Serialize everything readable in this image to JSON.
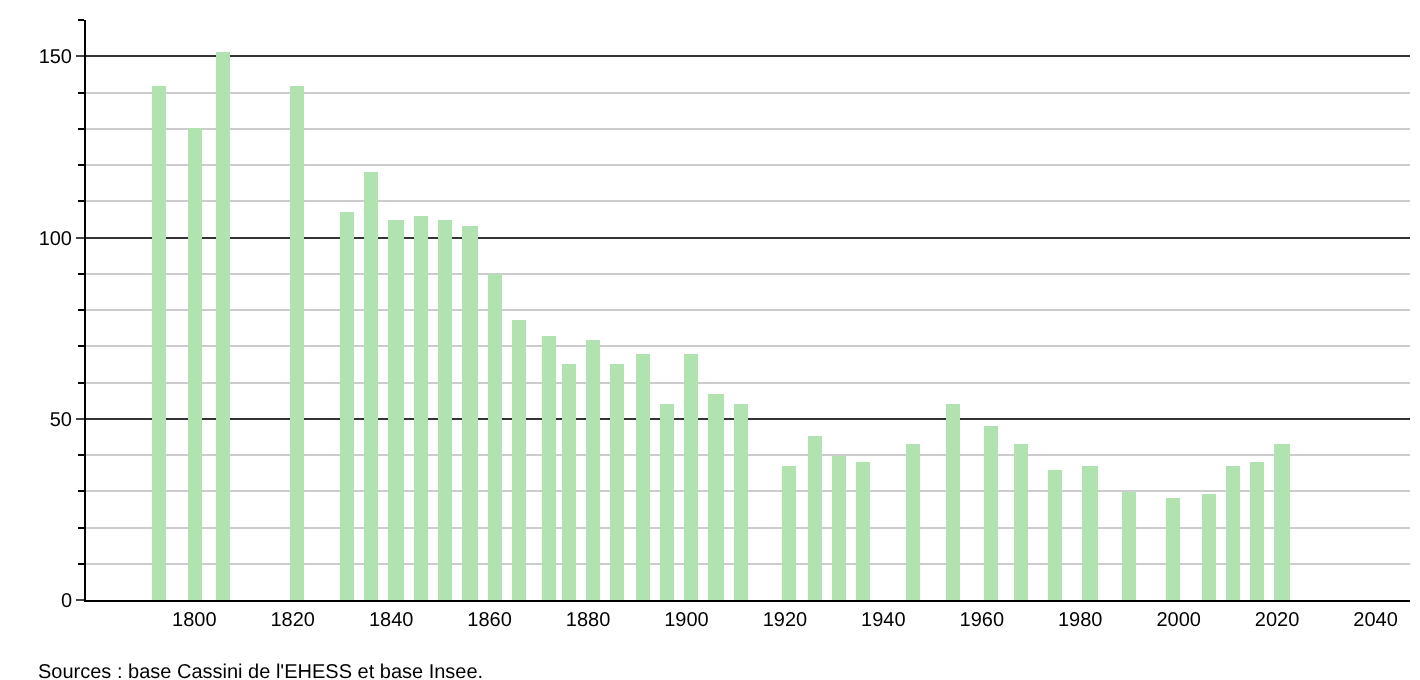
{
  "chart_data": {
    "type": "bar",
    "x": [
      1793,
      1800,
      1806,
      1821,
      1831,
      1836,
      1841,
      1846,
      1851,
      1856,
      1861,
      1866,
      1872,
      1876,
      1881,
      1886,
      1891,
      1896,
      1901,
      1906,
      1911,
      1921,
      1926,
      1931,
      1936,
      1946,
      1954,
      1962,
      1968,
      1975,
      1982,
      1990,
      1999,
      2006,
      2011,
      2016,
      2021
    ],
    "values": [
      142,
      130,
      151,
      142,
      107,
      118,
      105,
      106,
      105,
      103,
      90,
      77,
      73,
      65,
      72,
      65,
      68,
      54,
      68,
      57,
      54,
      37,
      45,
      40,
      38,
      43,
      54,
      48,
      43,
      36,
      37,
      30,
      28,
      29,
      37,
      38,
      43
    ],
    "color": "#b0e3b0",
    "xlim": [
      1778,
      2047
    ],
    "xticks": [
      1800,
      1820,
      1840,
      1860,
      1880,
      1900,
      1920,
      1940,
      1960,
      1980,
      2000,
      2020,
      2040
    ],
    "ylim": [
      0,
      160
    ],
    "yticks": [
      0,
      {
        "value": 10,
        "label": null
      },
      {
        "value": 20,
        "label": null
      },
      {
        "value": 30,
        "label": null
      },
      {
        "value": 40,
        "label": null
      },
      50,
      {
        "value": 60,
        "label": null
      },
      {
        "value": 70,
        "label": null
      },
      {
        "value": 80,
        "label": null
      },
      {
        "value": 90,
        "label": null
      },
      100,
      {
        "value": 110,
        "label": null
      },
      {
        "value": 120,
        "label": null
      },
      {
        "value": 130,
        "label": null
      },
      {
        "value": 140,
        "label": null
      },
      150,
      {
        "value": 160,
        "label": null
      }
    ],
    "grid": "y",
    "annotations": [
      "Sources : base Cassini de l'EHESS et base Insee."
    ]
  }
}
